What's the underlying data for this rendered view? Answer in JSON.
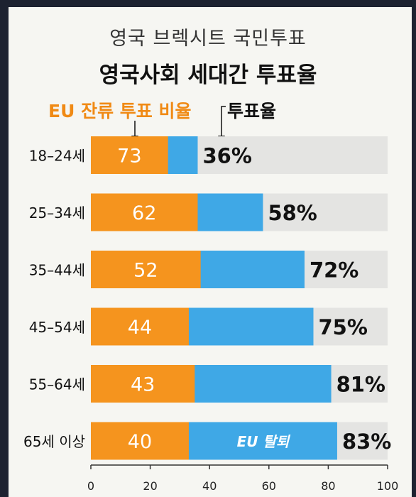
{
  "title": "영국 브렉시트 국민투표",
  "subtitle": "영국사회 세대간 투표율",
  "legend": {
    "remain_label": "EU 잔류 투표 비율",
    "turnout_label": "투표율"
  },
  "colors": {
    "remain": "#f5941e",
    "turnout": "#3fa8e6",
    "track": "#e4e4e2"
  },
  "chart_data": {
    "type": "bar",
    "orientation": "horizontal",
    "title": "영국사회 세대간 투표율",
    "categories": [
      "18–24세",
      "25–34세",
      "35–44세",
      "45–54세",
      "55–64세",
      "65세 이상"
    ],
    "series": [
      {
        "name": "EU 잔류 투표 비율",
        "values": [
          73,
          62,
          52,
          44,
          43,
          40
        ]
      },
      {
        "name": "투표율",
        "values": [
          36,
          58,
          72,
          75,
          81,
          83
        ]
      }
    ],
    "remain_share_of_turnout_axis": [
      26,
      36,
      37,
      33,
      35,
      33
    ],
    "value_labels": [
      "73",
      "62",
      "52",
      "44",
      "43",
      "40"
    ],
    "turnout_labels": [
      "36%",
      "58%",
      "72%",
      "75%",
      "81%",
      "83%"
    ],
    "annotation": "EU 탈퇴",
    "xlim": [
      0,
      100
    ],
    "x_ticks": [
      "0",
      "20",
      "40",
      "60",
      "80",
      "100"
    ],
    "grid": false
  }
}
